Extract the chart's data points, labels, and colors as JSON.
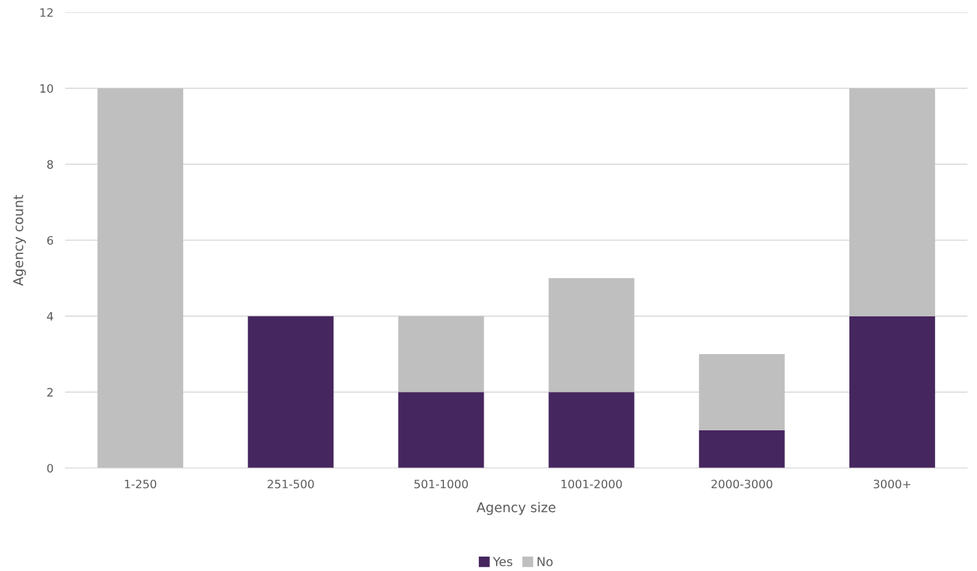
{
  "chart_data": {
    "type": "bar",
    "stacked": true,
    "xlabel": "Agency size",
    "ylabel": "Agency count",
    "categories": [
      "1-250",
      "251-500",
      "501-1000",
      "1001-2000",
      "2000-3000",
      "3000+"
    ],
    "series": [
      {
        "name": "Yes",
        "color": "#46265f",
        "values": [
          0,
          4,
          2,
          2,
          1,
          4
        ]
      },
      {
        "name": "No",
        "color": "#bfbfbf",
        "values": [
          10,
          0,
          2,
          3,
          2,
          6
        ]
      }
    ],
    "ylim": [
      0,
      12
    ],
    "yticks": [
      0,
      2,
      4,
      6,
      8,
      10,
      12
    ],
    "grid": "y",
    "legend": "bottom"
  }
}
